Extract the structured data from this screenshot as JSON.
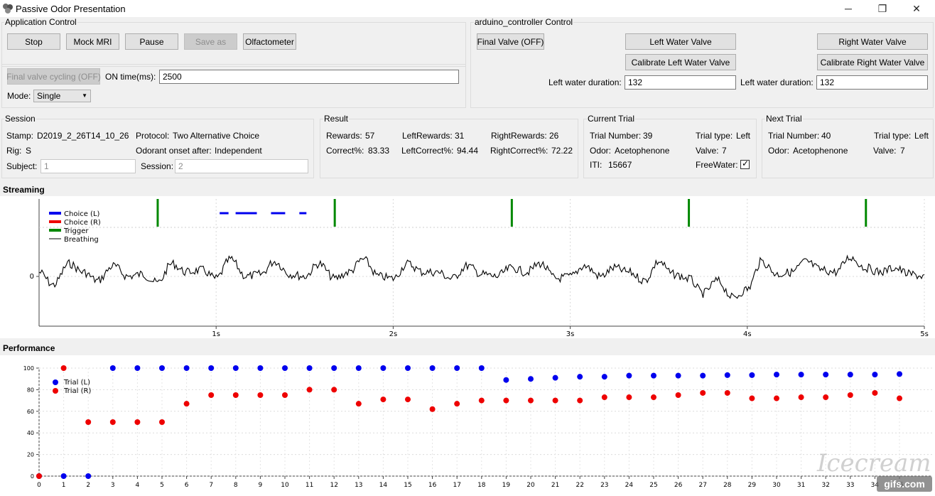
{
  "window": {
    "title": "Passive Odor Presentation",
    "minimize_glyph": "─",
    "maximize_glyph": "❐",
    "close_glyph": "✕"
  },
  "app_control": {
    "title": "Application Control",
    "buttons": {
      "stop": "Stop",
      "mock_mri": "Mock MRI",
      "pause": "Pause",
      "save_as": "Save as",
      "olfactometer": "Olfactometer"
    },
    "final_valve_cycling": "Final valve cycling (OFF)",
    "on_time_label": "ON time(ms):",
    "on_time_value": "2500",
    "mode_label": "Mode:",
    "mode_value": "Single"
  },
  "arduino": {
    "title": "arduino_controller Control",
    "final_valve": "Final Valve (OFF)",
    "left_water_valve": "Left Water Valve",
    "right_water_valve": "Right Water Valve",
    "calibrate_left": "Calibrate Left Water Valve",
    "calibrate_right": "Calibrate Right Water Valve",
    "left_duration_label": "Left water duration:",
    "left_duration_value": "132",
    "right_duration_label": "Left water duration:",
    "right_duration_value": "132"
  },
  "session": {
    "title": "Session",
    "stamp_label": "Stamp:",
    "stamp_value": "D2019_2_26T14_10_26",
    "protocol_label": "Protocol:",
    "protocol_value": "Two Alternative Choice",
    "rig_label": "Rig:",
    "rig_value": "S",
    "onset_label": "Odorant onset after:",
    "onset_value": "Independent",
    "subject_label": "Subject:",
    "subject_value": "1",
    "session_label": "Session:",
    "session_value": "2"
  },
  "result": {
    "title": "Result",
    "rewards_label": "Rewards:",
    "rewards_value": "57",
    "left_rewards_label": "LeftRewards:",
    "left_rewards_value": "31",
    "right_rewards_label": "RightRewards:",
    "right_rewards_value": "26",
    "correct_label": "Correct%:",
    "correct_value": "83.33",
    "left_correct_label": "LeftCorrect%:",
    "left_correct_value": "94.44",
    "right_correct_label": "RightCorrect%:",
    "right_correct_value": "72.22"
  },
  "current_trial": {
    "title": "Current Trial",
    "trial_number_label": "Trial Number:",
    "trial_number_value": "39",
    "trial_type_label": "Trial type:",
    "trial_type_value": "Left",
    "odor_label": "Odor:",
    "odor_value": "Acetophenone",
    "valve_label": "Valve:",
    "valve_value": "7",
    "iti_label": "ITI:",
    "iti_value": "15667",
    "freewater_label": "FreeWater:",
    "freewater_checked": true,
    "check_glyph": "✓"
  },
  "next_trial": {
    "title": "Next Trial",
    "trial_number_label": "Trial Number:",
    "trial_number_value": "40",
    "trial_type_label": "Trial type:",
    "trial_type_value": "Left",
    "odor_label": "Odor:",
    "odor_value": "Acetophenone",
    "valve_label": "Valve:",
    "valve_value": "7"
  },
  "streaming": {
    "title": "Streaming"
  },
  "performance": {
    "title": "Performance"
  },
  "watermark": {
    "text": "Icecream",
    "badge": "gifs.com"
  },
  "chart_data": [
    {
      "type": "line",
      "name": "streaming",
      "xlim": [
        0,
        5
      ],
      "x_ticks": [
        {
          "v": 1,
          "label": "1s"
        },
        {
          "v": 2,
          "label": "2s"
        },
        {
          "v": 3,
          "label": "3s"
        },
        {
          "v": 4,
          "label": "4s"
        },
        {
          "v": 5,
          "label": "5s"
        }
      ],
      "y_ticks": [
        {
          "v": 0,
          "label": "0"
        }
      ],
      "legend": {
        "placement": "top-left",
        "entries": [
          {
            "name": "Choice (L)",
            "color": "#0000ee"
          },
          {
            "name": "Choice (R)",
            "color": "#ee0000"
          },
          {
            "name": "Trigger",
            "color": "#008800"
          },
          {
            "name": "Breathing",
            "color": "#000000"
          }
        ]
      },
      "trigger_x": [
        0.67,
        1.67,
        2.67,
        3.67,
        4.67
      ],
      "choice_left_segments": [
        [
          1.02,
          1.07
        ],
        [
          1.11,
          1.23
        ],
        [
          1.31,
          1.39
        ],
        [
          1.47,
          1.51
        ]
      ],
      "breathing": {
        "x": [
          0,
          0.08,
          0.17,
          0.25,
          0.33,
          0.42,
          0.5,
          0.58,
          0.67,
          0.75,
          0.83,
          0.92,
          1.0,
          1.08,
          1.17,
          1.25,
          1.33,
          1.42,
          1.5,
          1.58,
          1.67,
          1.75,
          1.83,
          1.92,
          2.0,
          2.08,
          2.17,
          2.25,
          2.33,
          2.42,
          2.5,
          2.58,
          2.67,
          2.75,
          2.83,
          2.92,
          3.0,
          3.08,
          3.17,
          3.25,
          3.33,
          3.42,
          3.5,
          3.58,
          3.67,
          3.75,
          3.83,
          3.92,
          4.0,
          4.08,
          4.17,
          4.25,
          4.33,
          4.42,
          4.5,
          4.58,
          4.67,
          4.75,
          4.83,
          4.92,
          5.0
        ],
        "y": [
          0.1,
          -0.2,
          0.3,
          0.1,
          -0.1,
          0.25,
          0.0,
          0.05,
          -0.15,
          0.3,
          0.1,
          0.15,
          -0.05,
          0.4,
          0.0,
          0.05,
          0.35,
          0.05,
          0.0,
          0.3,
          -0.05,
          0.1,
          0.4,
          0.0,
          -0.05,
          0.3,
          0.1,
          0.1,
          -0.05,
          0.25,
          0.05,
          0.0,
          0.2,
          0.1,
          0.3,
          -0.05,
          0.0,
          0.25,
          0.0,
          0.2,
          0.1,
          -0.1,
          0.35,
          0.05,
          -0.05,
          -0.4,
          -0.1,
          -0.5,
          -0.3,
          0.35,
          0.05,
          0.1,
          0.35,
          0.15,
          0.1,
          0.45,
          0.2,
          0.1,
          0.2,
          0.05,
          0.0
        ]
      }
    },
    {
      "type": "scatter",
      "name": "performance",
      "xlim": [
        0,
        36
      ],
      "ylim": [
        0,
        100
      ],
      "x_ticks": [
        0,
        1,
        2,
        3,
        4,
        5,
        6,
        7,
        8,
        9,
        10,
        11,
        12,
        13,
        14,
        15,
        16,
        17,
        18,
        19,
        20,
        21,
        22,
        23,
        24,
        25,
        26,
        27,
        28,
        29,
        30,
        31,
        32,
        33,
        34,
        35
      ],
      "y_ticks": [
        0,
        20,
        40,
        60,
        80,
        100
      ],
      "legend": {
        "placement": "top-left"
      },
      "series": [
        {
          "name": "Trial (L)",
          "color": "#0000ee",
          "x": [
            0,
            1,
            2,
            3,
            4,
            5,
            6,
            7,
            8,
            9,
            10,
            11,
            12,
            13,
            14,
            15,
            16,
            17,
            18,
            19,
            20,
            21,
            22,
            23,
            24,
            25,
            26,
            27,
            28,
            29,
            30,
            31,
            32,
            33,
            34,
            35
          ],
          "y": [
            0,
            0,
            0,
            100,
            100,
            100,
            100,
            100,
            100,
            100,
            100,
            100,
            100,
            100,
            100,
            100,
            100,
            100,
            100,
            89,
            90,
            91,
            92,
            92,
            93,
            93,
            93,
            93,
            93.5,
            93.5,
            94,
            94,
            94,
            94,
            94,
            94.5
          ]
        },
        {
          "name": "Trial (R)",
          "color": "#ee0000",
          "x": [
            0,
            1,
            2,
            3,
            4,
            5,
            6,
            7,
            8,
            9,
            10,
            11,
            12,
            13,
            14,
            15,
            16,
            17,
            18,
            19,
            20,
            21,
            22,
            23,
            24,
            25,
            26,
            27,
            28,
            29,
            30,
            31,
            32,
            33,
            34,
            35
          ],
          "y": [
            0,
            100,
            50,
            50,
            50,
            50,
            67,
            75,
            75,
            75,
            75,
            80,
            80,
            67,
            71,
            71,
            62,
            67,
            70,
            70,
            70,
            70,
            70,
            73,
            73,
            73,
            75,
            77,
            77,
            72,
            72,
            73,
            73,
            75,
            77,
            72
          ]
        }
      ]
    }
  ]
}
